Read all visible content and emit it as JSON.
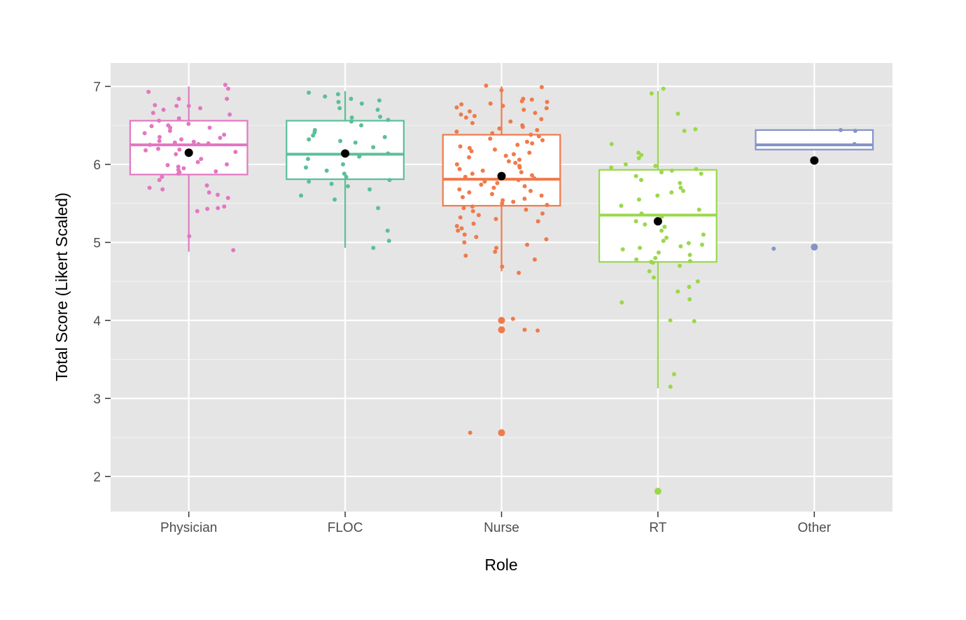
{
  "chart_data": {
    "type": "box",
    "xlabel": "Role",
    "ylabel": "Total Score (Likert Scaled)",
    "ylim": [
      1.55,
      7.3
    ],
    "yticks": [
      2,
      3,
      4,
      5,
      6,
      7
    ],
    "grid": true,
    "legend": "none",
    "categories": [
      "Physician",
      "FLOC",
      "Nurse",
      "RT",
      "Other"
    ],
    "colors": [
      "#e377c2",
      "#5bbf98",
      "#f07a4a",
      "#9ad84a",
      "#8494c8"
    ],
    "mean_color": "#000000",
    "boxes": [
      {
        "name": "Physician",
        "whisker_low": 4.88,
        "q1": 5.87,
        "median": 6.25,
        "q3": 6.56,
        "whisker_high": 7.0,
        "mean": 6.15,
        "outliers": []
      },
      {
        "name": "FLOC",
        "whisker_low": 4.93,
        "q1": 5.81,
        "median": 6.13,
        "q3": 6.56,
        "whisker_high": 6.94,
        "mean": 6.14,
        "outliers": []
      },
      {
        "name": "Nurse",
        "whisker_low": 4.63,
        "q1": 5.47,
        "median": 5.81,
        "q3": 6.38,
        "whisker_high": 7.0,
        "mean": 5.85,
        "outliers": [
          4.0,
          3.88,
          2.56
        ]
      },
      {
        "name": "RT",
        "whisker_low": 3.13,
        "q1": 4.75,
        "median": 5.35,
        "q3": 5.93,
        "whisker_high": 6.94,
        "mean": 5.27,
        "outliers": [
          1.81
        ]
      },
      {
        "name": "Other",
        "whisker_low": 6.19,
        "q1": 6.19,
        "median": 6.25,
        "q3": 6.44,
        "whisker_high": 6.44,
        "mean": 6.05,
        "outliers": [
          4.94
        ]
      }
    ],
    "points": [
      {
        "group": "Physician",
        "y": [
          7.02,
          6.97,
          6.93,
          6.84,
          6.84,
          6.76,
          6.75,
          6.75,
          6.72,
          6.7,
          6.66,
          6.64,
          6.59,
          6.56,
          6.52,
          6.5,
          6.49,
          6.47,
          6.47,
          6.43,
          6.4,
          6.38,
          6.35,
          6.34,
          6.32,
          6.3,
          6.29,
          6.28,
          6.27,
          6.26,
          6.25,
          6.2,
          6.19,
          6.18,
          6.16,
          6.13,
          6.07,
          6.03,
          6.0,
          5.99,
          5.97,
          5.95,
          5.93,
          5.91,
          5.9,
          5.88,
          5.84,
          5.8,
          5.73,
          5.7,
          5.68,
          5.64,
          5.61,
          5.57,
          5.46,
          5.44,
          5.43,
          5.4,
          5.08,
          4.9
        ]
      },
      {
        "group": "FLOC",
        "y": [
          6.92,
          6.9,
          6.87,
          6.84,
          6.82,
          6.8,
          6.78,
          6.72,
          6.7,
          6.61,
          6.6,
          6.57,
          6.55,
          6.5,
          6.44,
          6.41,
          6.37,
          6.35,
          6.32,
          6.3,
          6.28,
          6.22,
          6.14,
          6.12,
          6.1,
          6.07,
          6.0,
          5.96,
          5.92,
          5.88,
          5.84,
          5.8,
          5.78,
          5.75,
          5.72,
          5.68,
          5.6,
          5.55,
          5.44,
          5.15,
          5.02,
          4.93
        ]
      },
      {
        "group": "Nurse",
        "y": [
          7.01,
          6.99,
          6.95,
          6.84,
          6.83,
          6.81,
          6.8,
          6.78,
          6.77,
          6.75,
          6.73,
          6.72,
          6.7,
          6.68,
          6.66,
          6.64,
          6.62,
          6.6,
          6.58,
          6.55,
          6.53,
          6.5,
          6.48,
          6.46,
          6.44,
          6.42,
          6.4,
          6.38,
          6.36,
          6.33,
          6.31,
          6.29,
          6.27,
          6.25,
          6.23,
          6.21,
          6.19,
          6.17,
          6.15,
          6.13,
          6.11,
          6.09,
          6.06,
          6.04,
          6.02,
          6.0,
          5.98,
          5.96,
          5.94,
          5.92,
          5.9,
          5.88,
          5.86,
          5.84,
          5.82,
          5.8,
          5.78,
          5.76,
          5.74,
          5.72,
          5.7,
          5.68,
          5.66,
          5.64,
          5.62,
          5.6,
          5.58,
          5.56,
          5.54,
          5.52,
          5.5,
          5.48,
          5.46,
          5.44,
          5.42,
          5.4,
          5.37,
          5.35,
          5.32,
          5.3,
          5.27,
          5.24,
          5.21,
          5.18,
          5.15,
          5.1,
          5.07,
          5.04,
          5.0,
          4.97,
          4.93,
          4.88,
          4.83,
          4.78,
          4.69,
          4.61,
          4.02,
          3.88,
          3.87,
          2.56
        ]
      },
      {
        "group": "RT",
        "y": [
          6.97,
          6.91,
          6.65,
          6.45,
          6.43,
          6.26,
          6.15,
          6.12,
          6.08,
          6.0,
          5.98,
          5.96,
          5.94,
          5.92,
          5.9,
          5.88,
          5.85,
          5.8,
          5.76,
          5.7,
          5.66,
          5.64,
          5.6,
          5.55,
          5.47,
          5.42,
          5.37,
          5.33,
          5.3,
          5.27,
          5.23,
          5.2,
          5.15,
          5.1,
          5.06,
          5.02,
          4.99,
          4.97,
          4.95,
          4.93,
          4.91,
          4.87,
          4.84,
          4.8,
          4.78,
          4.76,
          4.75,
          4.74,
          4.7,
          4.63,
          4.55,
          4.5,
          4.43,
          4.37,
          4.27,
          4.23,
          4.0,
          3.99,
          3.31,
          3.15,
          1.81
        ]
      },
      {
        "group": "Other",
        "y": [
          6.44,
          6.43,
          6.26,
          4.92
        ]
      }
    ]
  }
}
